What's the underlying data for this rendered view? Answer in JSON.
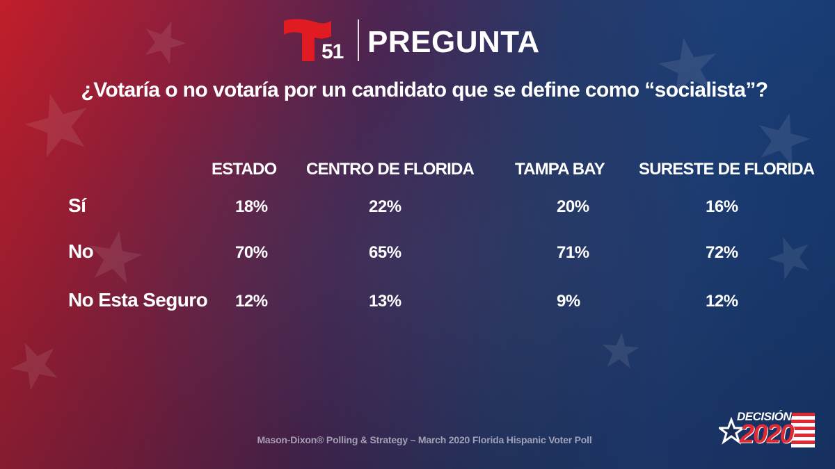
{
  "header": {
    "logo_number": "51",
    "title": "PREGUNTA"
  },
  "question": "¿Votaría o no votaría por un candidato que se define como “socialista”?",
  "chart_data": {
    "type": "table",
    "columns": [
      "ESTADO",
      "CENTRO DE FLORIDA",
      "TAMPA BAY",
      "SURESTE DE FLORIDA"
    ],
    "rows": [
      {
        "label": "Sí",
        "values": [
          "18%",
          "22%",
          "20%",
          "16%"
        ]
      },
      {
        "label": "No",
        "values": [
          "70%",
          "65%",
          "71%",
          "72%"
        ]
      },
      {
        "label": "No Esta Seguro",
        "values": [
          "12%",
          "13%",
          "9%",
          "12%"
        ]
      }
    ]
  },
  "footer": {
    "source": "Mason-Dixon® Polling & Strategy – March 2020 Florida Hispanic Voter Poll",
    "badge_top": "DECISIÓN",
    "badge_year": "2020"
  },
  "colors": {
    "brand_red": "#e11b22",
    "text": "#ffffff"
  },
  "icons": {
    "logo": "telemundo-t-icon",
    "badge": "star-stripes-icon"
  }
}
